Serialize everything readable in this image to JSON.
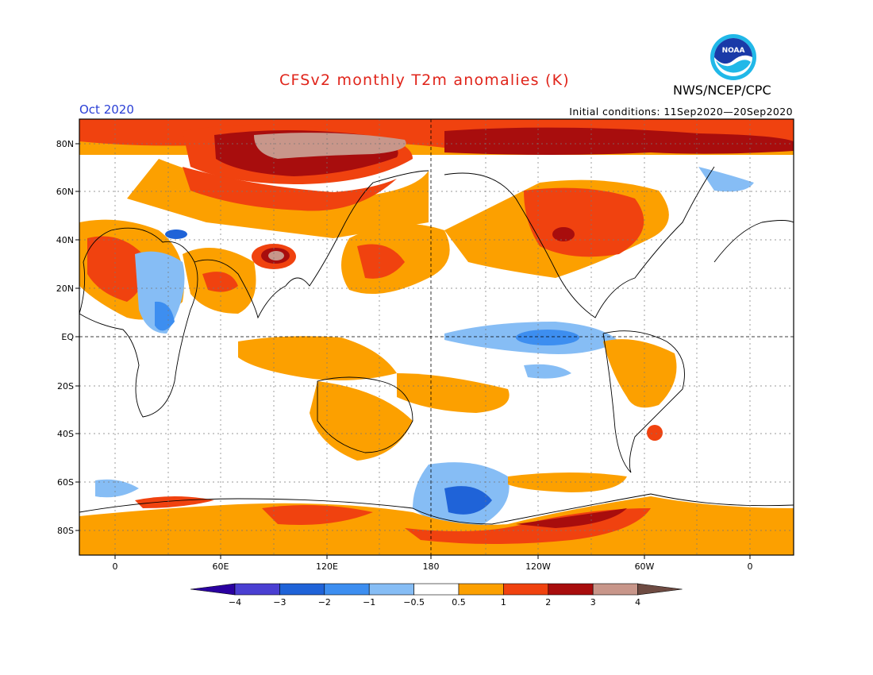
{
  "title": "CFSv2 monthly T2m anomalies (K)",
  "agency": "NWS/NCEP/CPC",
  "logo_text": "NOAA",
  "month": "Oct 2020",
  "initial_conditions": "Initial conditions: 11Sep2020—20Sep2020",
  "lat_labels": [
    "80N",
    "60N",
    "40N",
    "20N",
    "EQ",
    "20S",
    "40S",
    "60S",
    "80S"
  ],
  "lon_labels": [
    "0",
    "60E",
    "120E",
    "180",
    "120W",
    "60W",
    "0"
  ],
  "colorbar": {
    "labels": [
      "−4",
      "−3",
      "−2",
      "−1",
      "−0.5",
      "0.5",
      "1",
      "2",
      "3",
      "4"
    ],
    "colors": [
      "#2a00a0",
      "#4a3fd2",
      "#1f63d8",
      "#3d8ef0",
      "#86bdf5",
      "#ffffff",
      "#fca000",
      "#f0420f",
      "#a80d0d",
      "#c8968a",
      "#6e4b42"
    ]
  },
  "colors": {
    "title": "#e0241a",
    "month": "#2a3fd6",
    "ocean_land_bg": "#ffffff"
  }
}
